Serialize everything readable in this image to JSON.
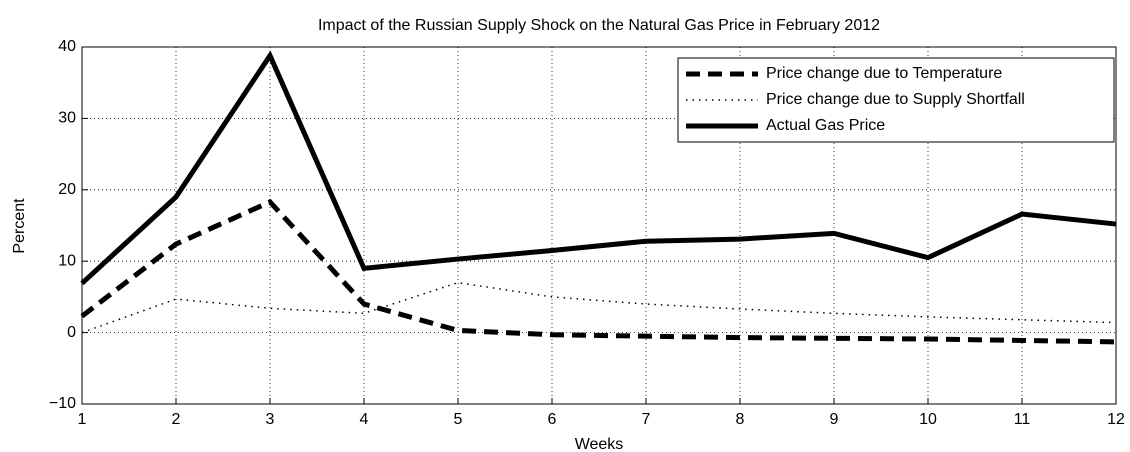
{
  "chart_data": {
    "type": "line",
    "title": "Impact of the Russian Supply Shock on the Natural Gas Price in February 2012",
    "x_label": "Weeks",
    "y_label": "Percent",
    "x": [
      1,
      2,
      3,
      4,
      5,
      6,
      7,
      8,
      9,
      10,
      11,
      12
    ],
    "xlim": [
      1,
      12
    ],
    "xticks": [
      1,
      2,
      3,
      4,
      5,
      6,
      7,
      8,
      9,
      10,
      11,
      12
    ],
    "ylim": [
      -10,
      40
    ],
    "yticks": [
      {
        "value": -10,
        "label": "−10"
      },
      0,
      10,
      20,
      30,
      40
    ],
    "grid": true,
    "legend": "upper right",
    "series": [
      {
        "name": "Price change due to Temperature",
        "color": "#000000",
        "style": "dashed",
        "values": [
          2.3,
          12.4,
          18.3,
          4,
          0.3,
          -0.3,
          -0.5,
          -0.7,
          -0.8,
          -0.9,
          -1.1,
          -1.3
        ]
      },
      {
        "name": "Price change due to Supply Shortfall",
        "color": "#000000",
        "style": "dotted",
        "values": [
          0,
          4.7,
          3.4,
          2.7,
          7,
          5,
          4,
          3.3,
          2.7,
          2.2,
          1.8,
          1.4
        ]
      },
      {
        "name": "Actual Gas Price",
        "color": "#000000",
        "style": "solid",
        "values": [
          6.9,
          19,
          38.8,
          9,
          10.3,
          11.5,
          12.8,
          13.1,
          13.9,
          10.5,
          16.6,
          15.2
        ]
      }
    ]
  }
}
